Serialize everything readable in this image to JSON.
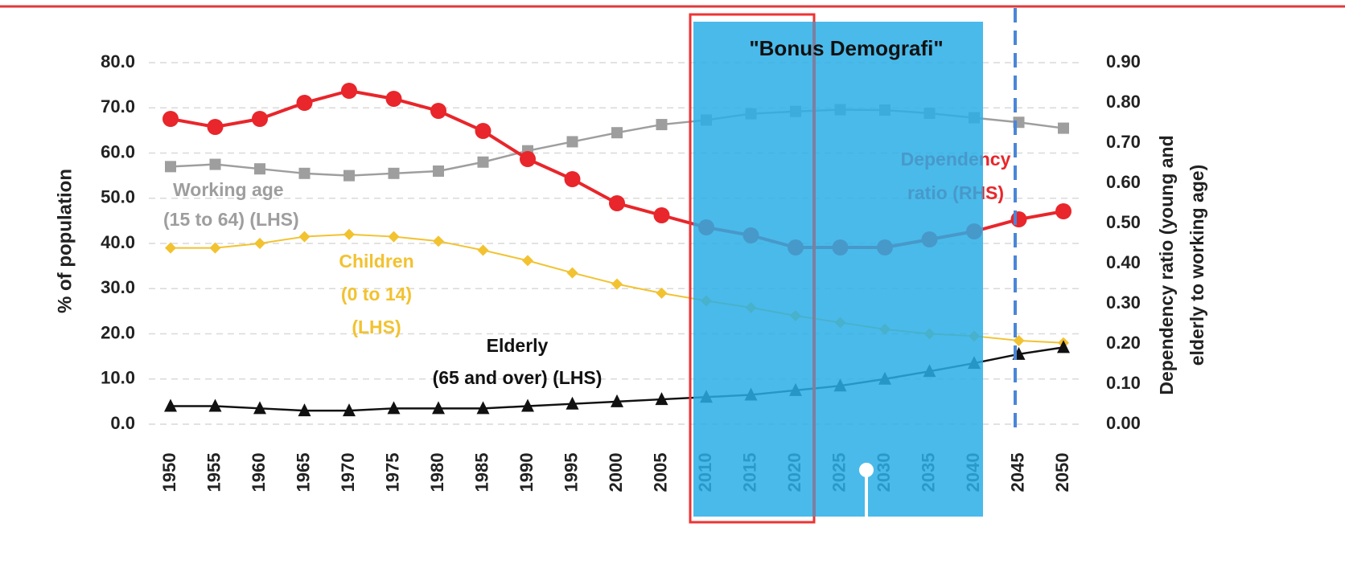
{
  "chart_data": {
    "type": "line",
    "title": "\"Bonus Demografi\"",
    "y_label": "% of population",
    "y2_label_lines": [
      "Dependency ratio (young and",
      "elderly to working age)"
    ],
    "categories": [
      "1950",
      "1955",
      "1960",
      "1965",
      "1970",
      "1975",
      "1980",
      "1985",
      "1990",
      "1995",
      "2000",
      "2005",
      "2010",
      "2015",
      "2020",
      "2025",
      "2030",
      "2035",
      "2040",
      "2045",
      "2050"
    ],
    "ylim": [
      0,
      80
    ],
    "yticks": [
      {
        "value": 0,
        "label": "0.0"
      },
      {
        "value": 10,
        "label": "10.0"
      },
      {
        "value": 20,
        "label": "20.0"
      },
      {
        "value": 30,
        "label": "30.0"
      },
      {
        "value": 40,
        "label": "40.0"
      },
      {
        "value": 50,
        "label": "50.0"
      },
      {
        "value": 60,
        "label": "60.0"
      },
      {
        "value": 70,
        "label": "70.0"
      },
      {
        "value": 80,
        "label": "80.0"
      }
    ],
    "y2lim": [
      0,
      0.9
    ],
    "y2ticks": [
      {
        "value": 0,
        "label": "0.00"
      },
      {
        "value": 0.1,
        "label": "0.10"
      },
      {
        "value": 0.2,
        "label": "0.20"
      },
      {
        "value": 0.3,
        "label": "0.30"
      },
      {
        "value": 0.4,
        "label": "0.40"
      },
      {
        "value": 0.5,
        "label": "0.50"
      },
      {
        "value": 0.6,
        "label": "0.60"
      },
      {
        "value": 0.7,
        "label": "0.70"
      },
      {
        "value": 0.8,
        "label": "0.80"
      },
      {
        "value": 0.9,
        "label": "0.90"
      }
    ],
    "grid": true,
    "series": [
      {
        "label_lines": [
          "Working age",
          "(15 to 64) (LHS)"
        ],
        "color": "#9e9e9e",
        "marker": "square",
        "values": [
          57.0,
          57.5,
          56.5,
          55.5,
          55.0,
          55.5,
          56.0,
          58.0,
          60.5,
          62.5,
          64.5,
          66.3,
          67.3,
          68.7,
          69.2,
          69.6,
          69.5,
          68.8,
          67.8,
          66.8,
          65.5
        ]
      },
      {
        "label_lines": [
          "Children",
          "(0 to 14)",
          "(LHS)"
        ],
        "color": "#f2c230",
        "marker": "diamond",
        "values": [
          39.0,
          39.0,
          40.0,
          41.5,
          42.0,
          41.5,
          40.5,
          38.5,
          36.2,
          33.5,
          31.0,
          29.0,
          27.3,
          25.8,
          24.0,
          22.5,
          21.0,
          20.0,
          19.5,
          18.5,
          18.0
        ]
      },
      {
        "label_lines": [
          "Elderly",
          "(65 and over) (LHS)"
        ],
        "color": "#111111",
        "marker": "triangle",
        "values": [
          4.0,
          4.0,
          3.5,
          3.0,
          3.0,
          3.5,
          3.5,
          3.5,
          4.0,
          4.5,
          5.0,
          5.5,
          6.0,
          6.5,
          7.5,
          8.5,
          10.0,
          11.7,
          13.5,
          15.5,
          17.0
        ]
      },
      {
        "label_lines": [
          "Dependency",
          "ratio (RHS)"
        ],
        "color": "#e8262b",
        "marker": "circle",
        "axis": "y2",
        "values": [
          0.76,
          0.74,
          0.76,
          0.8,
          0.83,
          0.81,
          0.78,
          0.73,
          0.66,
          0.61,
          0.55,
          0.52,
          0.49,
          0.47,
          0.44,
          0.44,
          0.44,
          0.46,
          0.48,
          0.51,
          0.53
        ]
      }
    ]
  }
}
